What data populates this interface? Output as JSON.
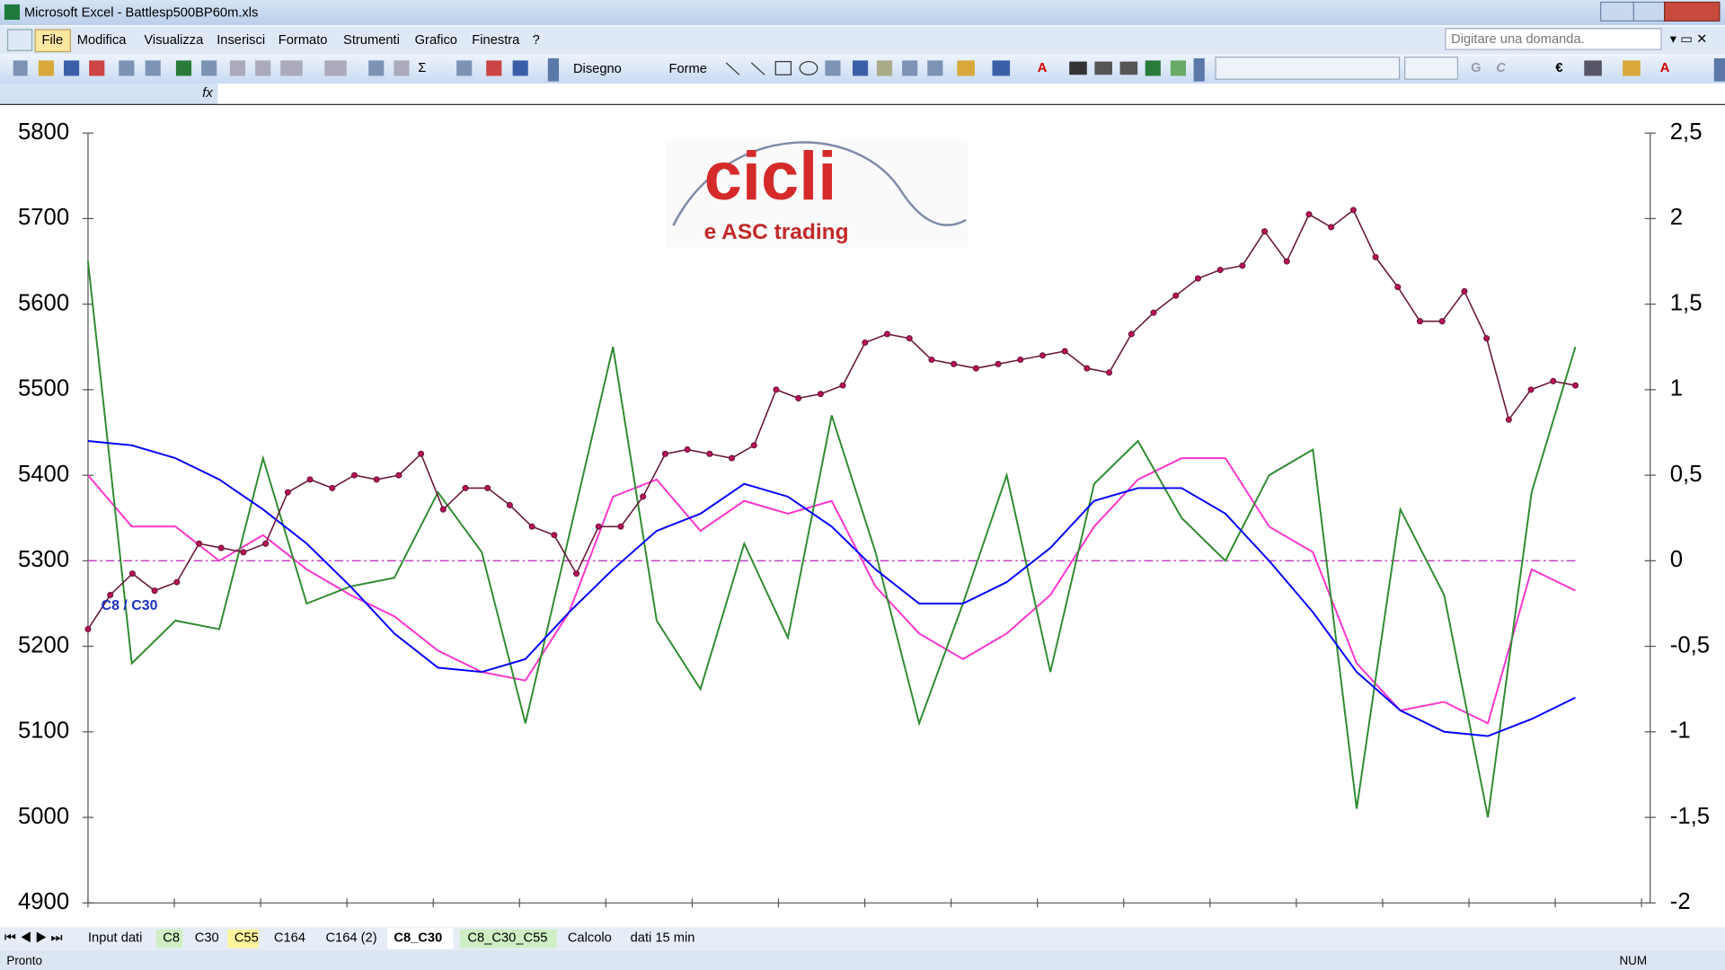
{
  "window": {
    "title": "Microsoft Excel - Battlesp500BP60m.xls",
    "help_box": "Digitare una domanda."
  },
  "menu": [
    "File",
    "Modifica",
    "Visualizza",
    "Inserisci",
    "Formato",
    "Strumenti",
    "Grafico",
    "Finestra",
    "?"
  ],
  "toolbar": {
    "sum": "Σ",
    "drawing": "Disegno",
    "shapes": "Forme",
    "bold": "G",
    "italic": "C",
    "euro": "€"
  },
  "logo": {
    "title": "cicli",
    "subtitle": "e ASC trading"
  },
  "chart_data": {
    "type": "line",
    "annotation": "C8 / C30",
    "ylim": [
      4900,
      5800
    ],
    "yticks": [
      4900,
      5000,
      5100,
      5200,
      5300,
      5400,
      5500,
      5600,
      5700,
      5800
    ],
    "y2lim": [
      -2,
      2.5
    ],
    "y2ticks": [
      -2,
      {
        "value": -1.5,
        "label": "-1,5"
      },
      -1,
      {
        "value": -0.5,
        "label": "-0,5"
      },
      0,
      {
        "value": 0.5,
        "label": "0,5"
      },
      1,
      {
        "value": 1.5,
        "label": "1,5"
      },
      2,
      {
        "value": 2.5,
        "label": "2,5"
      }
    ],
    "reference_line": {
      "axis": "y2",
      "value": 0,
      "color": "#c040c0"
    },
    "series": [
      {
        "color": "#ff33cc",
        "values": [
          5400,
          5340,
          5340,
          5300,
          5330,
          5290,
          5260,
          5235,
          5195,
          5170,
          5160,
          5240,
          5375,
          5395,
          5335,
          5370,
          5355,
          5370,
          5270,
          5215,
          5185,
          5215,
          5260,
          5340,
          5395,
          5420,
          5420,
          5340,
          5310,
          5180,
          5125,
          5135,
          5110,
          5290,
          5265
        ]
      },
      {
        "color": "#2e8b2e",
        "axis": "y2",
        "values": [
          1.75,
          -0.6,
          -0.35,
          -0.4,
          0.6,
          -0.25,
          -0.15,
          -0.1,
          0.4,
          0.05,
          -0.95,
          0.15,
          1.25,
          -0.35,
          -0.75,
          0.1,
          -0.45,
          0.85,
          0.05,
          -0.95,
          -0.25,
          0.5,
          -0.65,
          0.45,
          0.7,
          0.25,
          0,
          0.5,
          0.65,
          -1.45,
          0.3,
          -0.2,
          -1.5,
          0.4,
          1.25
        ]
      },
      {
        "color": "#0000ff",
        "values": [
          5440,
          5435,
          5420,
          5395,
          5360,
          5320,
          5270,
          5215,
          5175,
          5170,
          5185,
          5240,
          5290,
          5335,
          5355,
          5390,
          5375,
          5340,
          5290,
          5250,
          5250,
          5275,
          5315,
          5370,
          5385,
          5385,
          5355,
          5300,
          5240,
          5170,
          5125,
          5100,
          5095,
          5115,
          5140
        ]
      },
      {
        "color": "#6a1a3a",
        "marker_color": "#c0105a",
        "values": [
          5220,
          5260,
          5285,
          5265,
          5275,
          5320,
          5315,
          5310,
          5320,
          5380,
          5395,
          5385,
          5400,
          5395,
          5400,
          5425,
          5360,
          5385,
          5385,
          5365,
          5340,
          5330,
          5285,
          5340,
          5340,
          5375,
          5425,
          5430,
          5425,
          5420,
          5435,
          5500,
          5490,
          5495,
          5505,
          5555,
          5565,
          5560,
          5535,
          5530,
          5525,
          5530,
          5535,
          5540,
          5545,
          5525,
          5520,
          5565,
          5590,
          5610,
          5630,
          5640,
          5645,
          5685,
          5650,
          5705,
          5690,
          5710,
          5655,
          5620,
          5580,
          5580,
          5615,
          5560,
          5465,
          5500,
          5510,
          5505
        ]
      }
    ]
  },
  "sheet_tabs": [
    "Input dati",
    "C8",
    "C30",
    "C55",
    "C164",
    "C164 (2)",
    "C8_C30",
    "C8_C30_C55",
    "Calcolo",
    "dati 15 min"
  ],
  "status": {
    "ready": "Pronto",
    "num": "NUM"
  }
}
